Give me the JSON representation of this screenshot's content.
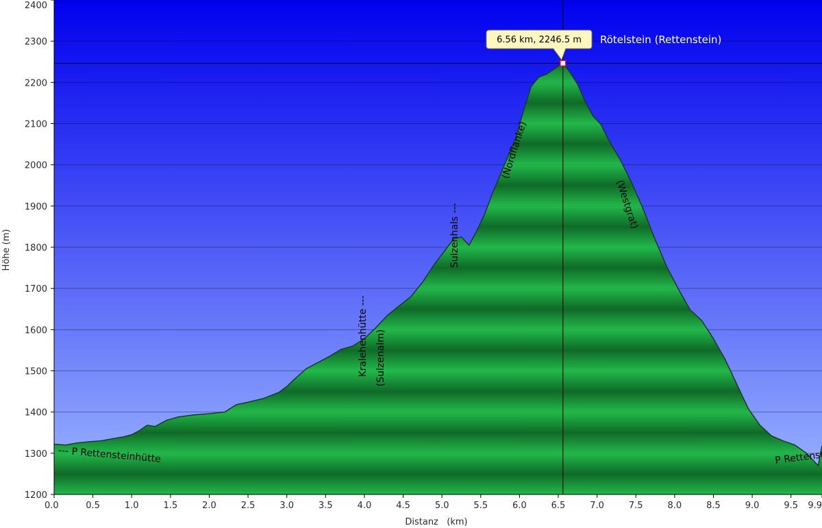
{
  "chart_data": {
    "type": "area",
    "xlabel": "Distanz   (km)",
    "ylabel": "Höhe (m)",
    "xlim": [
      0,
      9.9
    ],
    "ylim": [
      1200,
      2400
    ],
    "x_ticks": [
      "0.0",
      "0.5",
      "1.0",
      "1.5",
      "2.0",
      "2.5",
      "3.0",
      "3.5",
      "4.0",
      "4.5",
      "5.0",
      "5.5",
      "6.0",
      "6.5",
      "7.0",
      "7.5",
      "8.0",
      "8.5",
      "9.0",
      "9.5",
      "9.9"
    ],
    "y_ticks": [
      "1200",
      "1300",
      "1400",
      "1500",
      "1600",
      "1700",
      "1800",
      "1900",
      "2000",
      "2100",
      "2200",
      "2300",
      "2400"
    ],
    "grid": true,
    "series": [
      {
        "x": [
          0.0,
          0.15,
          0.3,
          0.45,
          0.6,
          0.75,
          0.9,
          1.0,
          1.1,
          1.2,
          1.3,
          1.45,
          1.6,
          1.8,
          2.0,
          2.2,
          2.35,
          2.5,
          2.7,
          2.9,
          3.0,
          3.1,
          3.25,
          3.4,
          3.55,
          3.7,
          3.85,
          4.0,
          4.15,
          4.3,
          4.45,
          4.6,
          4.75,
          4.9,
          5.05,
          5.15,
          5.25,
          5.35,
          5.45,
          5.55,
          5.65,
          5.75,
          5.85,
          5.95,
          6.05,
          6.15,
          6.25,
          6.35,
          6.45,
          6.56,
          6.65,
          6.75,
          6.85,
          6.95,
          7.05,
          7.15,
          7.3,
          7.45,
          7.6,
          7.75,
          7.9,
          8.05,
          8.2,
          8.35,
          8.5,
          8.65,
          8.8,
          8.95,
          9.1,
          9.25,
          9.4,
          9.55,
          9.7,
          9.85,
          9.9
        ],
        "y": [
          1322,
          1320,
          1325,
          1328,
          1330,
          1335,
          1340,
          1345,
          1355,
          1368,
          1365,
          1380,
          1388,
          1393,
          1396,
          1400,
          1418,
          1424,
          1433,
          1448,
          1462,
          1480,
          1505,
          1520,
          1535,
          1552,
          1560,
          1578,
          1605,
          1635,
          1658,
          1680,
          1715,
          1758,
          1795,
          1820,
          1825,
          1805,
          1840,
          1880,
          1930,
          1975,
          2020,
          2065,
          2130,
          2190,
          2213,
          2220,
          2233,
          2246.5,
          2225,
          2195,
          2152,
          2118,
          2098,
          2060,
          2012,
          1955,
          1890,
          1818,
          1752,
          1698,
          1648,
          1622,
          1578,
          1528,
          1468,
          1408,
          1368,
          1342,
          1330,
          1320,
          1300,
          1270,
          1318
        ]
      }
    ],
    "annotations": [
      {
        "text": "--- P Rettensteinhütte",
        "x": 0.05,
        "y": 1300,
        "rotation": 5
      },
      {
        "text": "Kralehenhütte ---",
        "x": 4.02,
        "y": 1485,
        "rotation": -90
      },
      {
        "text": "(Sulzenalm)",
        "x": 4.25,
        "y": 1462,
        "rotation": -90
      },
      {
        "text": "Sulzenhals ---",
        "x": 5.2,
        "y": 1750,
        "rotation": -90
      },
      {
        "text": "(Nordflanke)",
        "x": 5.85,
        "y": 1965,
        "rotation": -72
      },
      {
        "text": "(Westgrat)",
        "x": 7.25,
        "y": 1960,
        "rotation": 72
      },
      {
        "text": "P Rettensteinhütte ---",
        "x": 9.3,
        "y": 1275,
        "rotation": -7
      }
    ],
    "peak": {
      "label": "6.56 km, 2246.5 m",
      "name": "Rötelstein (Rettenstein)",
      "x": 6.56,
      "y": 2246.5
    },
    "colors": {
      "sky_top": "#0000ee",
      "sky_bottom": "#9db8ff",
      "fill_light": "#22b84a",
      "fill_dark": "#0f6a28",
      "outline": "#1b3a22",
      "crosshair": "#000000",
      "tooltip_bg": "#fff6c0",
      "peak_marker": "#e8001c"
    }
  }
}
